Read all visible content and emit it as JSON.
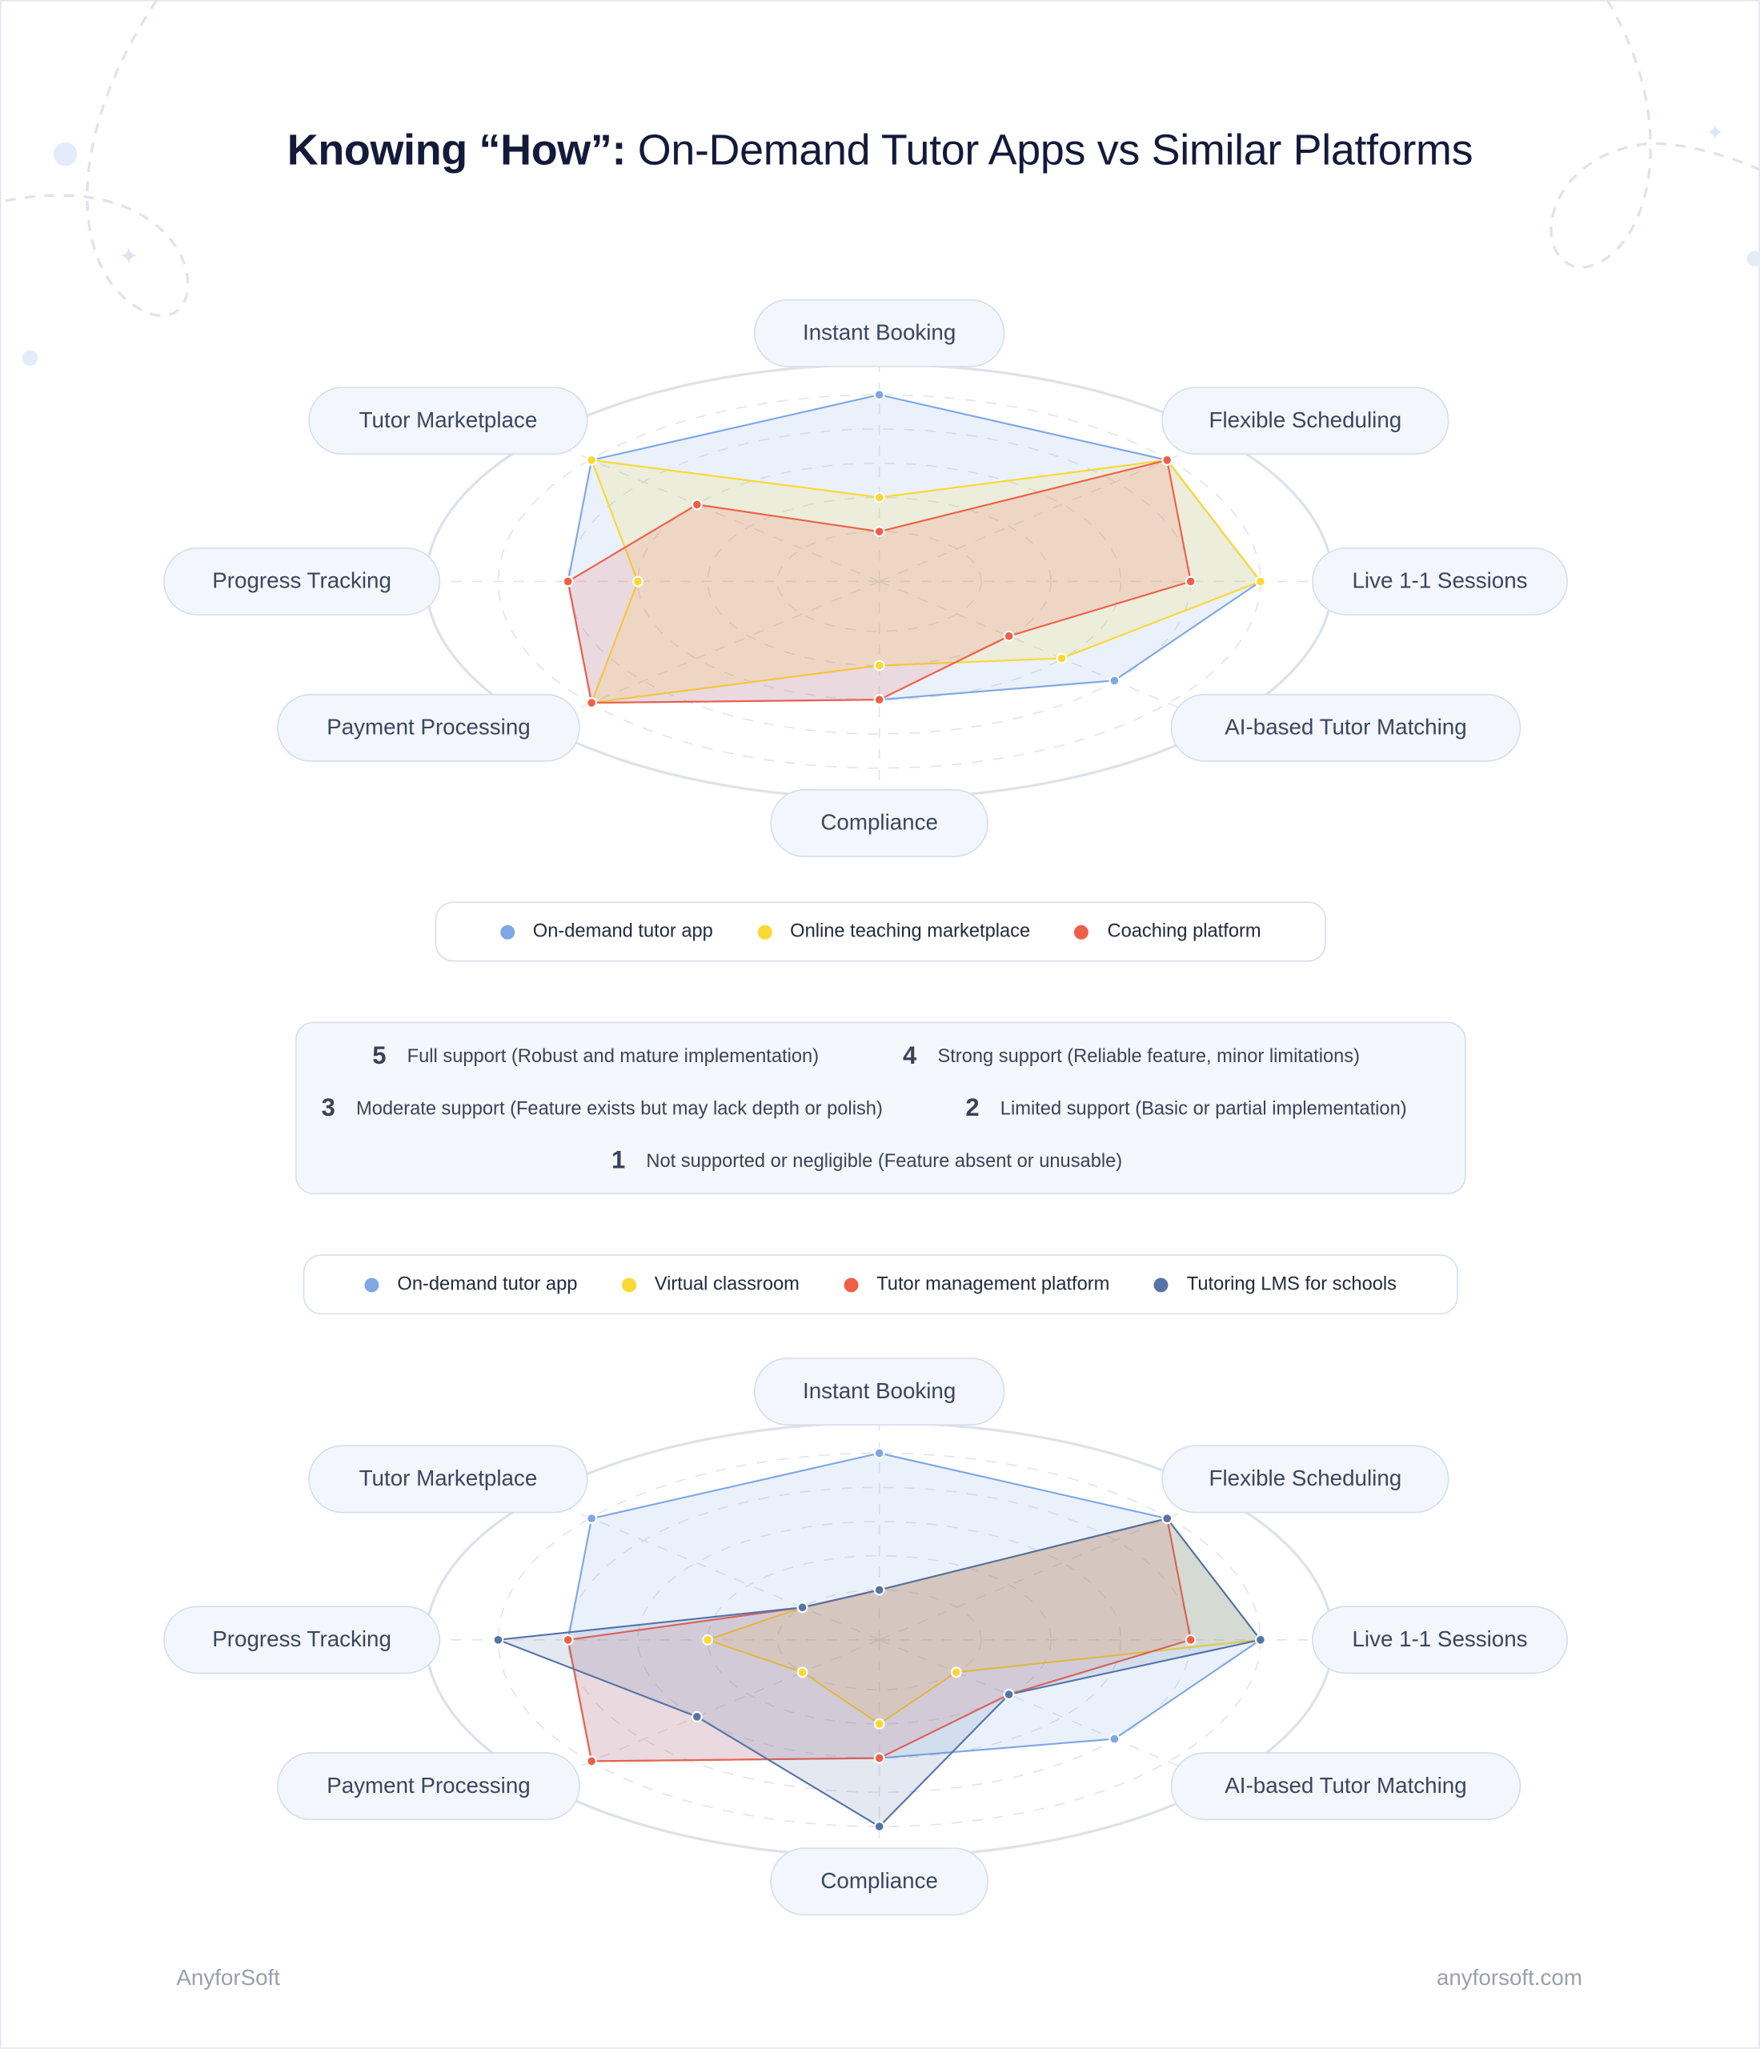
{
  "title": {
    "bold": "Knowing “How”:",
    "rest": " On-Demand Tutor Apps vs Similar Platforms"
  },
  "axes": [
    "Instant Booking",
    "Flexible Scheduling",
    "Live 1-1 Sessions",
    "AI-based Tutor Matching",
    "Compliance",
    "Payment Processing",
    "Progress Tracking",
    "Tutor Marketplace"
  ],
  "scale": [
    {
      "n": "5",
      "text": "Full support (Robust and mature implementation)"
    },
    {
      "n": "4",
      "text": "Strong support (Reliable feature, minor limitations)"
    },
    {
      "n": "3",
      "text": "Moderate support (Feature exists but may lack depth or polish)"
    },
    {
      "n": "2",
      "text": "Limited support (Basic or partial implementation)"
    },
    {
      "n": "1",
      "text": "Not supported or negligible (Feature absent or unusable)"
    }
  ],
  "chart_data": [
    {
      "type": "radar",
      "categories": [
        "Instant Booking",
        "Flexible Scheduling",
        "Live 1-1 Sessions",
        "AI-based Tutor Matching",
        "Compliance",
        "Payment Processing",
        "Progress Tracking",
        "Tutor Marketplace"
      ],
      "range": [
        1,
        5
      ],
      "legend_position": "bottom",
      "series": [
        {
          "name": "On-demand tutor app",
          "color": "#7ea7e4",
          "values": [
            5,
            5,
            5,
            4,
            3,
            5,
            4,
            5
          ]
        },
        {
          "name": "Online teaching marketplace",
          "color": "#fbd832",
          "values": [
            2,
            5,
            5,
            3,
            2,
            5,
            3,
            5
          ]
        },
        {
          "name": "Coaching platform",
          "color": "#ef5f48",
          "values": [
            1,
            5,
            4,
            2,
            3,
            5,
            4,
            3
          ]
        }
      ]
    },
    {
      "type": "radar",
      "categories": [
        "Instant Booking",
        "Flexible Scheduling",
        "Live 1-1 Sessions",
        "AI-based Tutor Matching",
        "Compliance",
        "Payment Processing",
        "Progress Tracking",
        "Tutor Marketplace"
      ],
      "range": [
        1,
        5
      ],
      "legend_position": "top",
      "series": [
        {
          "name": "On-demand tutor app",
          "color": "#7ea7e4",
          "values": [
            5,
            5,
            5,
            4,
            3,
            5,
            4,
            5
          ]
        },
        {
          "name": "Virtual classroom",
          "color": "#fbd832",
          "values": [
            1,
            5,
            5,
            1,
            2,
            1,
            2,
            1
          ]
        },
        {
          "name": "Tutor management platform",
          "color": "#ef5f48",
          "values": [
            1,
            5,
            4,
            2,
            3,
            5,
            4,
            1
          ]
        },
        {
          "name": "Tutoring LMS for schools",
          "color": "#5574a6",
          "values": [
            1,
            5,
            5,
            2,
            5,
            3,
            5,
            1
          ]
        }
      ]
    }
  ],
  "footer": {
    "left": "AnyforSoft",
    "right": "anyforsoft.com"
  }
}
